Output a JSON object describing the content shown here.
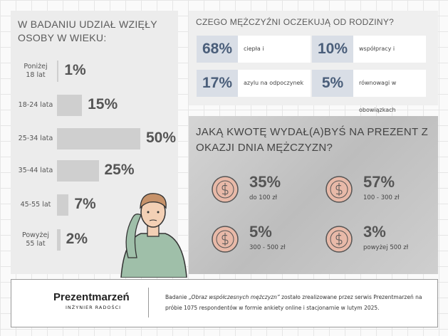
{
  "chart_data": {
    "type": "bar",
    "title": "W BADANIU UDZIAŁ WZIĘŁY OSOBY W WIEKU:",
    "categories": [
      "Poniżej\n18 lat",
      "18-24 lata",
      "25-34 lata",
      "35-44 lata",
      "45-55 lat",
      "Powyżej\n55 lat"
    ],
    "values": [
      1,
      15,
      50,
      25,
      7,
      2
    ],
    "value_labels": [
      "1%",
      "15%",
      "50%",
      "25%",
      "7%",
      "2%"
    ],
    "color": "#cfcfcf"
  },
  "expectations": {
    "title": "CZEGO MĘŻCZYŹNI OCZEKUJĄ OD RODZINY?",
    "items": [
      {
        "value": "68%",
        "label": "ciepła i bezpieczeństwa"
      },
      {
        "value": "10%",
        "label": "współpracy i komunikacji"
      },
      {
        "value": "17%",
        "label": "azylu na odpoczynek"
      },
      {
        "value": "5%",
        "label": "równowagi w obowiązkach"
      }
    ]
  },
  "gift": {
    "title": "JAKĄ KWOTĘ WYDAŁ(A)BYŚ NA PREZENT Z OKAZJI DNIA MĘŻCZYZN?",
    "items": [
      {
        "value": "35%",
        "label": "do 100 zł"
      },
      {
        "value": "57%",
        "label": "100 - 300 zł"
      },
      {
        "value": "5%",
        "label": "300 - 500 zł"
      },
      {
        "value": "3%",
        "label": "powyżej 500 zł"
      }
    ]
  },
  "footer": {
    "logo": "Prezentmarzeń",
    "tagline": "INŻYNIER RADOŚCI",
    "text_before": "Badanie ",
    "text_italic": "„Obraz współczesnych mężczyzn”",
    "text_after": " zostało zrealizowane przez serwis Prezentmarzeń na próbie 1075 respondentów w formie ankiety online i stacjonarnie w lutym 2025."
  }
}
